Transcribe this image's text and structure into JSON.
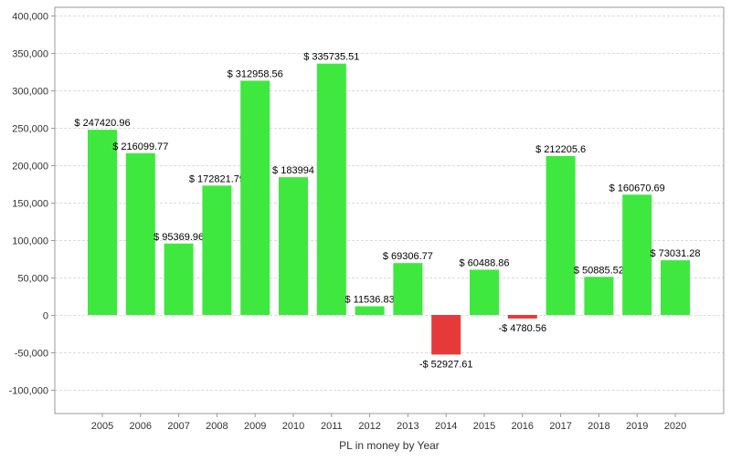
{
  "chart_data": {
    "type": "bar",
    "title": "",
    "xlabel": "PL in money by Year",
    "ylabel": "",
    "ylim": [
      -130000,
      411000
    ],
    "yticks": [
      -100000,
      -50000,
      0,
      50000,
      100000,
      150000,
      200000,
      250000,
      300000,
      350000,
      400000
    ],
    "ytick_labels": [
      "-100,000",
      "-50,000",
      "0",
      "50,000",
      "100,000",
      "150,000",
      "200,000",
      "250,000",
      "300,000",
      "350,000",
      "400,000"
    ],
    "grid": true,
    "categories": [
      "2005",
      "2006",
      "2007",
      "2008",
      "2009",
      "2010",
      "2011",
      "2012",
      "2013",
      "2014",
      "2015",
      "2016",
      "2017",
      "2018",
      "2019",
      "2020"
    ],
    "values": [
      247420.96,
      216099.77,
      95369.96,
      172821.79,
      312958.56,
      183994,
      335735.51,
      11536.83,
      69306.77,
      -52927.61,
      60488.86,
      -4780.56,
      212205.6,
      50885.52,
      160670.69,
      73031.28
    ],
    "data_labels": [
      "$ 247420.96",
      "$ 216099.77",
      "$ 95369.96",
      "$ 172821.79",
      "$ 312958.56",
      "$ 183994",
      "$ 335735.51",
      "$ 11536.83",
      "$ 69306.77",
      "-$ 52927.61",
      "$ 60488.86",
      "-$ 4780.56",
      "$ 212205.6",
      "$ 50885.52",
      "$ 160670.69",
      "$ 73031.28"
    ],
    "colors": {
      "positive": "#3fe83f",
      "negative": "#e63a3a"
    }
  }
}
